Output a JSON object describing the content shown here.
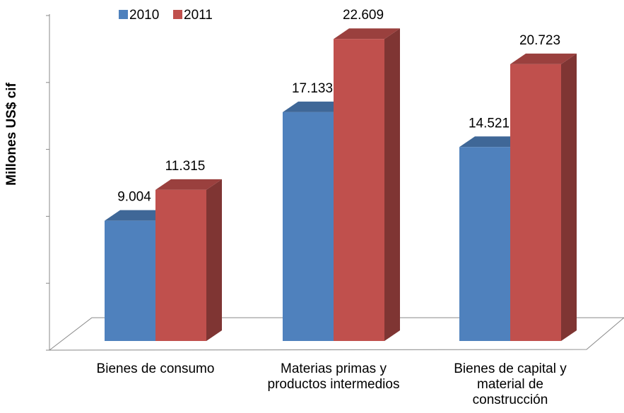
{
  "chart_data": {
    "type": "bar3d",
    "y_label": "Millones US$ cif",
    "categories": [
      "Bienes de consumo",
      "Materias primas y\nproductos intermedios",
      "Bienes de capital y\nmaterial de\nconstrucción"
    ],
    "series": [
      {
        "name": "2010",
        "color": "#4f81bd",
        "values": [
          9004,
          17133,
          14521
        ],
        "value_labels": [
          "9.004",
          "17.133",
          "14.521"
        ]
      },
      {
        "name": "2011",
        "color": "#c0504d",
        "values": [
          11315,
          22609,
          20723
        ],
        "value_labels": [
          "11.315",
          "22.609",
          "20.723"
        ]
      }
    ],
    "ylim": [
      0,
      25000
    ],
    "yticks": [
      0,
      5000,
      10000,
      15000,
      20000,
      25000
    ],
    "legend": "top"
  }
}
